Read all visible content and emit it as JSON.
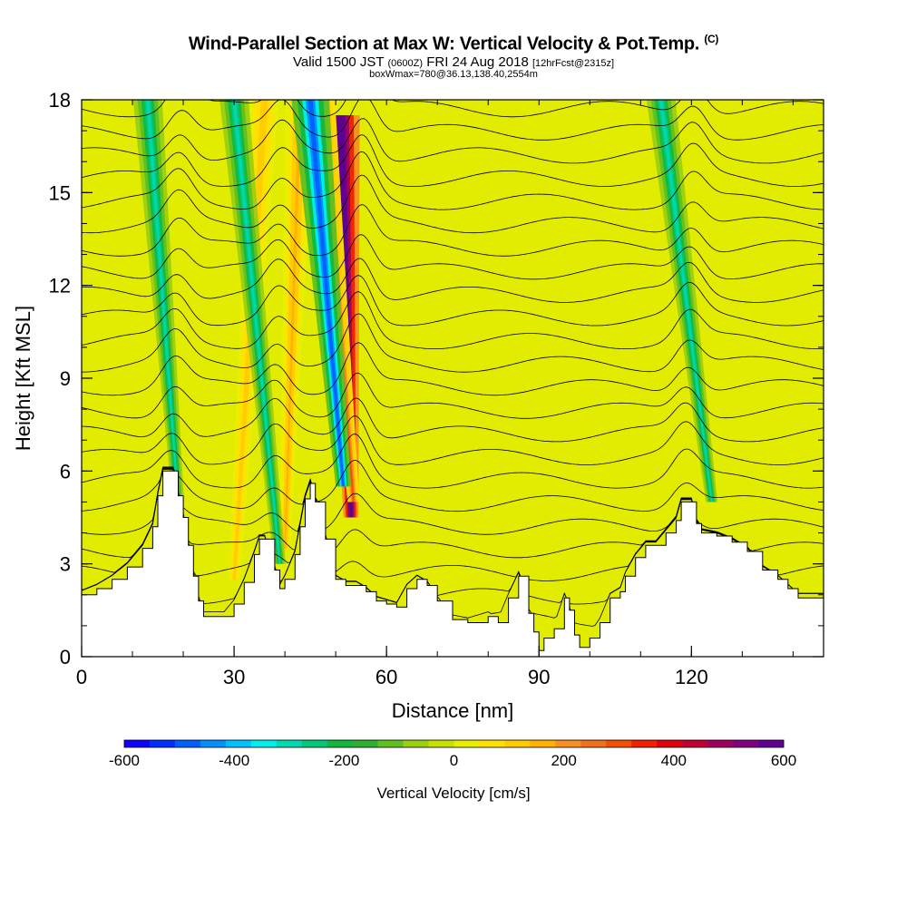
{
  "title": {
    "main": "Wind-Parallel Section at Max W: Vertical Velocity & Pot.Temp.",
    "copyright": "(C)",
    "valid_prefix": "Valid 1500 JST",
    "valid_utc": "(0600Z)",
    "valid_date": "FRI 24 Aug 2018",
    "forecast": "[12hrFcst@2315z]",
    "box": "boxWmax=780@36.13,138.40,2554m"
  },
  "chart_data": {
    "type": "heatmap",
    "xlabel": "Distance [nm]",
    "ylabel": "Height [Kft MSL]",
    "xlim": [
      0,
      146
    ],
    "ylim": [
      0,
      18
    ],
    "x_ticks": [
      0,
      30,
      60,
      90,
      120
    ],
    "y_ticks": [
      0,
      3,
      6,
      9,
      12,
      15,
      18
    ],
    "terrain": [
      [
        0,
        2
      ],
      [
        3,
        2.2
      ],
      [
        6,
        2.5
      ],
      [
        9,
        2.9
      ],
      [
        12,
        3.5
      ],
      [
        14,
        4.2
      ],
      [
        15,
        5.2
      ],
      [
        16,
        6
      ],
      [
        18,
        6
      ],
      [
        19,
        5.2
      ],
      [
        20,
        4.5
      ],
      [
        21,
        3.6
      ],
      [
        22,
        2.6
      ],
      [
        23,
        1.8
      ],
      [
        24,
        1.3
      ],
      [
        28,
        1.3
      ],
      [
        30,
        1.7
      ],
      [
        32,
        2.4
      ],
      [
        34,
        3.3
      ],
      [
        35,
        3.8
      ],
      [
        36,
        3.8
      ],
      [
        38,
        2.8
      ],
      [
        39,
        2.2
      ],
      [
        40,
        2.5
      ],
      [
        42,
        3.3
      ],
      [
        43,
        4.2
      ],
      [
        44,
        5.1
      ],
      [
        45,
        5.6
      ],
      [
        46,
        5
      ],
      [
        48,
        3.8
      ],
      [
        50,
        2.5
      ],
      [
        52,
        2.3
      ],
      [
        54,
        2.3
      ],
      [
        56,
        2.1
      ],
      [
        58,
        1.8
      ],
      [
        60,
        1.7
      ],
      [
        62,
        1.6
      ],
      [
        64,
        2.2
      ],
      [
        66,
        2.5
      ],
      [
        68,
        2.3
      ],
      [
        70,
        1.8
      ],
      [
        73,
        1.2
      ],
      [
        76,
        1.1
      ],
      [
        80,
        1.3
      ],
      [
        82,
        1.1
      ],
      [
        84,
        1.9
      ],
      [
        86,
        2.6
      ],
      [
        88,
        1.4
      ],
      [
        89,
        0.8
      ],
      [
        90,
        0.2
      ],
      [
        91,
        0.6
      ],
      [
        93,
        0.9
      ],
      [
        95,
        1.9
      ],
      [
        96,
        1.5
      ],
      [
        97,
        0.7
      ],
      [
        98,
        0.3
      ],
      [
        100,
        0.6
      ],
      [
        102,
        1.1
      ],
      [
        104,
        1.9
      ],
      [
        106,
        2.1
      ],
      [
        107,
        2.6
      ],
      [
        109,
        3.2
      ],
      [
        111,
        3.6
      ],
      [
        113,
        3.6
      ],
      [
        115,
        4
      ],
      [
        117,
        4.4
      ],
      [
        118,
        5
      ],
      [
        120,
        5
      ],
      [
        121,
        4.3
      ],
      [
        122,
        4
      ],
      [
        125,
        3.9
      ],
      [
        128,
        3.7
      ],
      [
        131,
        3.4
      ],
      [
        134,
        2.8
      ],
      [
        137,
        2.5
      ],
      [
        139,
        2.2
      ],
      [
        141,
        1.9
      ],
      [
        146,
        1.9
      ]
    ],
    "updraft_bands": [
      {
        "x_base": 53,
        "y_base": 4.5,
        "x_top": 51,
        "y_top": 17.5,
        "w_max": 780
      },
      {
        "x_base": 53.5,
        "y_base": 5,
        "x_top": 47,
        "y_top": 18,
        "w_max": 300
      },
      {
        "x_base": 40,
        "y_base": 3.5,
        "x_top": 43,
        "y_top": 18,
        "w_max": 150
      },
      {
        "x_base": 30,
        "y_base": 2.5,
        "x_top": 36,
        "y_top": 18,
        "w_max": 120
      }
    ],
    "downdraft_bands": [
      {
        "x_base": 51.5,
        "y_base": 5.5,
        "x_top": 45,
        "y_top": 18,
        "w_min": -500
      },
      {
        "x_base": 19,
        "y_base": 5,
        "x_top": 13,
        "y_top": 18,
        "w_min": -300
      },
      {
        "x_base": 39,
        "y_base": 3,
        "x_top": 30,
        "y_top": 18,
        "w_min": -300
      },
      {
        "x_base": 124,
        "y_base": 5,
        "x_top": 114,
        "y_top": 18,
        "w_min": -300
      }
    ],
    "colorbar": {
      "label": "Vertical Velocity [cm/s]",
      "ticks": [
        -600,
        -400,
        -200,
        0,
        200,
        400,
        600
      ],
      "range": [
        -600,
        600
      ],
      "colors": [
        "#1000ff",
        "#0030ff",
        "#0060ff",
        "#0090ff",
        "#00c0ff",
        "#00eeee",
        "#00d8b0",
        "#00c878",
        "#10b840",
        "#30b030",
        "#60c020",
        "#9ad010",
        "#c8e000",
        "#e8f000",
        "#ffe000",
        "#ffcc00",
        "#ffb000",
        "#f89020",
        "#f07020",
        "#f05000",
        "#f02000",
        "#e00010",
        "#c00030",
        "#a00060",
        "#800080",
        "#600090"
      ]
    }
  }
}
